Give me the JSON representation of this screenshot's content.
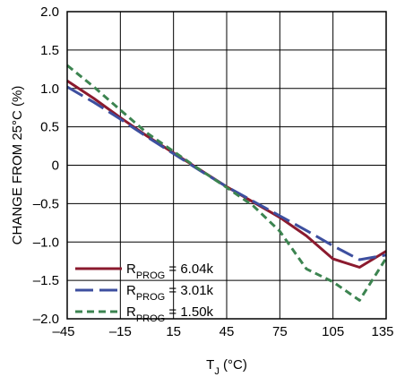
{
  "chart_data": {
    "type": "line",
    "xlabel": {
      "main": "T",
      "sub": "J",
      "unit": " (°C)"
    },
    "ylabel": "CHANGE FROM 25°C (%)",
    "xlim": [
      -45,
      135
    ],
    "ylim": [
      -2.0,
      2.0
    ],
    "x_ticks": [
      -45,
      -15,
      15,
      45,
      75,
      105,
      135
    ],
    "x_tick_labels": [
      "–45",
      "–15",
      "15",
      "45",
      "75",
      "105",
      "135"
    ],
    "y_ticks": [
      2.0,
      1.5,
      1.0,
      0.5,
      0,
      -0.5,
      -1.0,
      -1.5,
      -2.0
    ],
    "y_tick_labels": [
      "2.0",
      "1.5",
      "1.0",
      "0.5",
      "0",
      "–0.5",
      "–1.0",
      "–1.5",
      "–2.0"
    ],
    "grid": true,
    "legend_position": "bottom-left",
    "series": [
      {
        "name": "RPROG = 6.04k",
        "legend": {
          "main": "R",
          "sub": "PROG",
          "rest": " = 6.04k"
        },
        "color": "#8b1a2e",
        "dash": "solid",
        "points": [
          [
            -45,
            1.1
          ],
          [
            -30,
            0.87
          ],
          [
            -15,
            0.62
          ],
          [
            0,
            0.38
          ],
          [
            15,
            0.16
          ],
          [
            30,
            -0.06
          ],
          [
            45,
            -0.28
          ],
          [
            60,
            -0.48
          ],
          [
            75,
            -0.68
          ],
          [
            90,
            -0.92
          ],
          [
            105,
            -1.22
          ],
          [
            120,
            -1.33
          ],
          [
            135,
            -1.12
          ]
        ]
      },
      {
        "name": "RPROG = 3.01k",
        "legend": {
          "main": "R",
          "sub": "PROG",
          "rest": " = 3.01k"
        },
        "color": "#3d4f9f",
        "dash": "dashed-long",
        "points": [
          [
            -45,
            1.02
          ],
          [
            -30,
            0.82
          ],
          [
            -15,
            0.6
          ],
          [
            0,
            0.37
          ],
          [
            15,
            0.15
          ],
          [
            30,
            -0.07
          ],
          [
            45,
            -0.28
          ],
          [
            60,
            -0.47
          ],
          [
            75,
            -0.66
          ],
          [
            90,
            -0.85
          ],
          [
            105,
            -1.05
          ],
          [
            120,
            -1.23
          ],
          [
            135,
            -1.17
          ]
        ]
      },
      {
        "name": "RPROG = 1.50k",
        "legend": {
          "main": "R",
          "sub": "PROG",
          "rest": " = 1.50k"
        },
        "color": "#3c8450",
        "dash": "dashed-short",
        "points": [
          [
            -45,
            1.3
          ],
          [
            -30,
            1.02
          ],
          [
            -15,
            0.72
          ],
          [
            0,
            0.42
          ],
          [
            15,
            0.18
          ],
          [
            30,
            -0.06
          ],
          [
            45,
            -0.29
          ],
          [
            60,
            -0.53
          ],
          [
            75,
            -0.86
          ],
          [
            90,
            -1.35
          ],
          [
            105,
            -1.52
          ],
          [
            120,
            -1.76
          ],
          [
            135,
            -1.21
          ]
        ]
      }
    ]
  }
}
